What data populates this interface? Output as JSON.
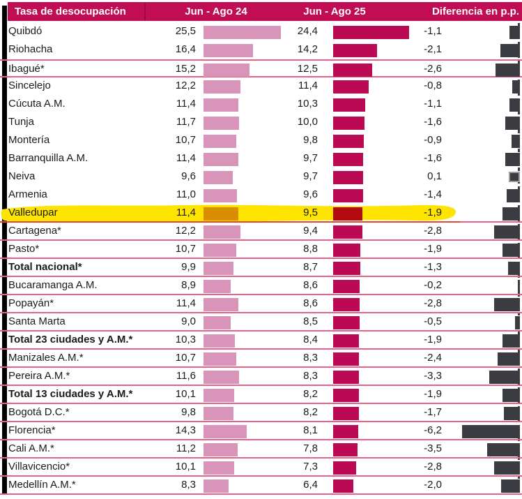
{
  "header": {
    "col_city": "Tasa de desocupación",
    "col_24": "Jun - Ago 24",
    "col_25": "Jun - Ago 25",
    "col_diff": "Diferencia en p.p."
  },
  "colors": {
    "header_bg": "#C10D53",
    "header_text": "#FFFFFF",
    "text": "#1A1A1A",
    "bar24": "#D995B9",
    "bar25": "#BB0A53",
    "diff_bar": "#3B3B42",
    "diff_bar_outline": "#9B9B9B",
    "separator": "#EC5F87",
    "highlight": "#FFE400",
    "hl_bar24": "#D98E00",
    "hl_bar25": "#B20B10",
    "hl_line": "#E8452E",
    "left_strip": "#000000",
    "dashed_line": "#3B3B42"
  },
  "rows": [
    {
      "name": "Quibdó",
      "v24": "25,5",
      "v25": "24,4",
      "diff": "-1,1",
      "bold": false,
      "highlight": false,
      "line_above": false,
      "line_below": false,
      "outlined_diff": false
    },
    {
      "name": "Riohacha",
      "v24": "16,4",
      "v25": "14,2",
      "diff": "-2,1",
      "bold": false,
      "highlight": false,
      "line_above": false,
      "line_below": false,
      "outlined_diff": false
    },
    {
      "name": "Ibagué*",
      "v24": "15,2",
      "v25": "12,5",
      "diff": "-2,6",
      "bold": false,
      "highlight": false,
      "line_above": true,
      "line_below": true,
      "outlined_diff": false
    },
    {
      "name": "Sincelejo",
      "v24": "12,2",
      "v25": "11,4",
      "diff": "-0,8",
      "bold": false,
      "highlight": false,
      "line_above": false,
      "line_below": false,
      "outlined_diff": false
    },
    {
      "name": "Cúcuta A.M.",
      "v24": "11,4",
      "v25": "10,3",
      "diff": "-1,1",
      "bold": false,
      "highlight": false,
      "line_above": false,
      "line_below": false,
      "outlined_diff": false
    },
    {
      "name": "Tunja",
      "v24": "11,7",
      "v25": "10,0",
      "diff": "-1,6",
      "bold": false,
      "highlight": false,
      "line_above": false,
      "line_below": false,
      "outlined_diff": false
    },
    {
      "name": "Montería",
      "v24": "10,7",
      "v25": "9,8",
      "diff": "-0,9",
      "bold": false,
      "highlight": false,
      "line_above": false,
      "line_below": false,
      "outlined_diff": false
    },
    {
      "name": "Barranquilla A.M.",
      "v24": "11,4",
      "v25": "9,7",
      "diff": "-1,6",
      "bold": false,
      "highlight": false,
      "line_above": false,
      "line_below": false,
      "outlined_diff": false
    },
    {
      "name": "Neiva",
      "v24": "9,6",
      "v25": "9,7",
      "diff": "0,1",
      "bold": false,
      "highlight": false,
      "line_above": false,
      "line_below": false,
      "outlined_diff": true
    },
    {
      "name": "Armenia",
      "v24": "11,0",
      "v25": "9,6",
      "diff": "-1,4",
      "bold": false,
      "highlight": false,
      "line_above": false,
      "line_below": false,
      "outlined_diff": false
    },
    {
      "name": "Valledupar",
      "v24": "11,4",
      "v25": "9,5",
      "diff": "-1,9",
      "bold": false,
      "highlight": true,
      "line_above": false,
      "line_below": true,
      "outlined_diff": false
    },
    {
      "name": "Cartagena*",
      "v24": "12,2",
      "v25": "9,4",
      "diff": "-2,8",
      "bold": false,
      "highlight": false,
      "line_above": false,
      "line_below": true,
      "outlined_diff": false
    },
    {
      "name": "Pasto*",
      "v24": "10,7",
      "v25": "8,8",
      "diff": "-1,9",
      "bold": false,
      "highlight": false,
      "line_above": false,
      "line_below": true,
      "outlined_diff": false
    },
    {
      "name": "Total nacional*",
      "v24": "9,9",
      "v25": "8,7",
      "diff": "-1,3",
      "bold": true,
      "highlight": false,
      "line_above": false,
      "line_below": true,
      "outlined_diff": false
    },
    {
      "name": "Bucaramanga A.M.",
      "v24": "8,9",
      "v25": "8,6",
      "diff": "-0,2",
      "bold": false,
      "highlight": false,
      "line_above": false,
      "line_below": true,
      "outlined_diff": false
    },
    {
      "name": "Popayán*",
      "v24": "11,4",
      "v25": "8,6",
      "diff": "-2,8",
      "bold": false,
      "highlight": false,
      "line_above": false,
      "line_below": true,
      "outlined_diff": false
    },
    {
      "name": "Santa Marta",
      "v24": "9,0",
      "v25": "8,5",
      "diff": "-0,5",
      "bold": false,
      "highlight": false,
      "line_above": false,
      "line_below": true,
      "outlined_diff": false
    },
    {
      "name": "Total 23 ciudades y A.M.*",
      "v24": "10,3",
      "v25": "8,4",
      "diff": "-1,9",
      "bold": true,
      "highlight": false,
      "line_above": false,
      "line_below": true,
      "outlined_diff": false
    },
    {
      "name": "Manizales A.M.*",
      "v24": "10,7",
      "v25": "8,3",
      "diff": "-2,4",
      "bold": false,
      "highlight": false,
      "line_above": false,
      "line_below": true,
      "outlined_diff": false
    },
    {
      "name": "Pereira A.M.*",
      "v24": "11,6",
      "v25": "8,3",
      "diff": "-3,3",
      "bold": false,
      "highlight": false,
      "line_above": false,
      "line_below": true,
      "outlined_diff": false
    },
    {
      "name": "Total 13 ciudades y A.M.*",
      "v24": "10,1",
      "v25": "8,2",
      "diff": "-1,9",
      "bold": true,
      "highlight": false,
      "line_above": false,
      "line_below": true,
      "outlined_diff": false
    },
    {
      "name": "Bogotá D.C.*",
      "v24": "9,8",
      "v25": "8,2",
      "diff": "-1,7",
      "bold": false,
      "highlight": false,
      "line_above": false,
      "line_below": true,
      "outlined_diff": false
    },
    {
      "name": "Florencia*",
      "v24": "14,3",
      "v25": "8,1",
      "diff": "-6,2",
      "bold": false,
      "highlight": false,
      "line_above": false,
      "line_below": true,
      "outlined_diff": false
    },
    {
      "name": "Cali A.M.*",
      "v24": "11,2",
      "v25": "7,8",
      "diff": "-3,5",
      "bold": false,
      "highlight": false,
      "line_above": false,
      "line_below": true,
      "outlined_diff": false
    },
    {
      "name": "Villavicencio*",
      "v24": "10,1",
      "v25": "7,3",
      "diff": "-2,8",
      "bold": false,
      "highlight": false,
      "line_above": false,
      "line_below": true,
      "outlined_diff": false
    },
    {
      "name": "Medellín A.M.*",
      "v24": "8,3",
      "v25": "6,4",
      "diff": "-2,0",
      "bold": false,
      "highlight": false,
      "line_above": false,
      "line_below": true,
      "outlined_diff": false
    }
  ],
  "chart_data": {
    "type": "bar",
    "orientation": "horizontal",
    "title": "Tasa de desocupación",
    "categories": [
      "Quibdó",
      "Riohacha",
      "Ibagué*",
      "Sincelejo",
      "Cúcuta A.M.",
      "Tunja",
      "Montería",
      "Barranquilla A.M.",
      "Neiva",
      "Armenia",
      "Valledupar",
      "Cartagena*",
      "Pasto*",
      "Total nacional*",
      "Bucaramanga A.M.",
      "Popayán*",
      "Santa Marta",
      "Total 23 ciudades y A.M.*",
      "Manizales A.M.*",
      "Pereira A.M.*",
      "Total 13 ciudades y A.M.*",
      "Bogotá D.C.*",
      "Florencia*",
      "Cali A.M.*",
      "Villavicencio*",
      "Medellín A.M.*"
    ],
    "series": [
      {
        "name": "Jun - Ago 24",
        "values": [
          25.5,
          16.4,
          15.2,
          12.2,
          11.4,
          11.7,
          10.7,
          11.4,
          9.6,
          11.0,
          11.4,
          12.2,
          10.7,
          9.9,
          8.9,
          11.4,
          9.0,
          10.3,
          10.7,
          11.6,
          10.1,
          9.8,
          14.3,
          11.2,
          10.1,
          8.3
        ]
      },
      {
        "name": "Jun - Ago 25",
        "values": [
          24.4,
          14.2,
          12.5,
          11.4,
          10.3,
          10.0,
          9.8,
          9.7,
          9.7,
          9.6,
          9.5,
          9.4,
          8.8,
          8.7,
          8.6,
          8.6,
          8.5,
          8.4,
          8.3,
          8.3,
          8.2,
          8.2,
          8.1,
          7.8,
          7.3,
          6.4
        ]
      },
      {
        "name": "Diferencia en p.p.",
        "values": [
          -1.1,
          -2.1,
          -2.6,
          -0.8,
          -1.1,
          -1.6,
          -0.9,
          -1.6,
          0.1,
          -1.4,
          -1.9,
          -2.8,
          -1.9,
          -1.3,
          -0.2,
          -2.8,
          -0.5,
          -1.9,
          -2.4,
          -3.3,
          -1.9,
          -1.7,
          -6.2,
          -3.5,
          -2.8,
          -2.0
        ]
      }
    ],
    "highlighted_category": "Valledupar",
    "legend_position": "top",
    "grid": false
  }
}
